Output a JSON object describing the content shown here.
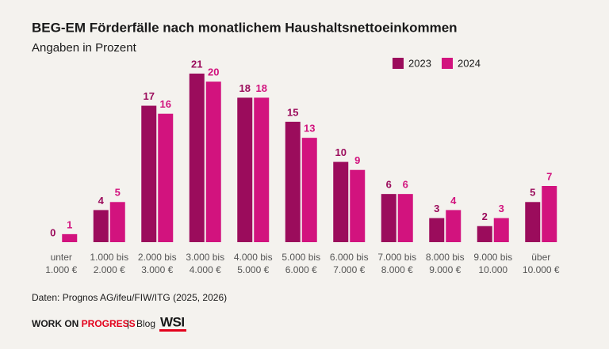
{
  "chart_data": {
    "type": "bar",
    "title": "BEG-EM Förderfälle nach monatlichem Haushaltsnettoeinkommen",
    "subtitle": "Angaben in Prozent",
    "categories": [
      [
        "unter",
        "1.000 €"
      ],
      [
        "1.000 bis",
        "2.000 €"
      ],
      [
        "2.000 bis",
        "3.000 €"
      ],
      [
        "3.000 bis",
        "4.000 €"
      ],
      [
        "4.000 bis",
        "5.000 €"
      ],
      [
        "5.000 bis",
        "6.000 €"
      ],
      [
        "6.000 bis",
        "7.000 €"
      ],
      [
        "7.000 bis",
        "8.000 €"
      ],
      [
        "8.000 bis",
        "9.000 €"
      ],
      [
        "9.000 bis",
        "10.000"
      ],
      [
        "über",
        "10.000 €"
      ]
    ],
    "series": [
      {
        "name": "2023",
        "color": "#9b0c5c",
        "values": [
          0,
          4,
          17,
          21,
          18,
          15,
          10,
          6,
          3,
          2,
          5
        ]
      },
      {
        "name": "2024",
        "color": "#d2137e",
        "values": [
          1,
          5,
          16,
          20,
          18,
          13,
          9,
          6,
          4,
          3,
          7
        ]
      }
    ],
    "legend": "top-right",
    "source": "Daten: Prognos AG/ifeu/FIW/ITG (2025, 2026)"
  },
  "footer": {
    "brand": "WORK ON",
    "brand_highlight": "PROGRESS",
    "separator": "|",
    "blog": "Blog",
    "logo": "WSI"
  }
}
